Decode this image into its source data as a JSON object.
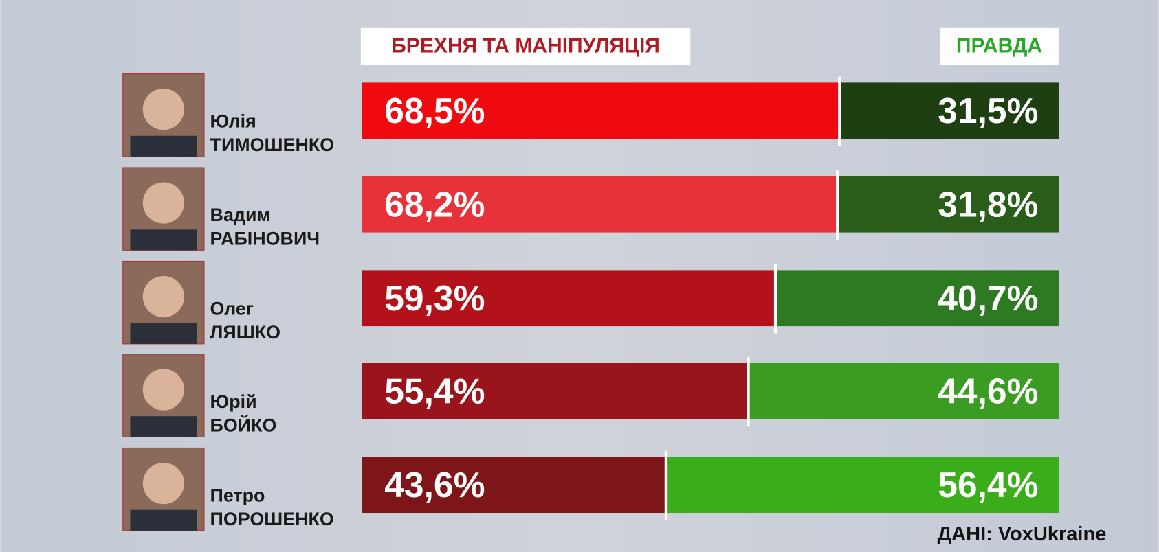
{
  "chart_data": {
    "type": "stacked_bar",
    "categories": [
      [
        "Юлія",
        "ТИМОШЕНКО"
      ],
      [
        "Вадим",
        "РАБІНОВИЧ"
      ],
      [
        "Олег",
        "ЛЯШКО"
      ],
      [
        "Юрій",
        "БОЙКО"
      ],
      [
        "Петро",
        "ПОРОШЕНКО"
      ]
    ],
    "xlim": [
      0,
      100
    ],
    "series": [
      {
        "name": "БРЕХНЯ ТА МАНІПУЛЯЦІЯ",
        "color": "#b01a22",
        "colors": [
          "#ee0a0f",
          "#e8323a",
          "#b3121a",
          "#9a141b",
          "#7d1519"
        ],
        "values": [
          68.5,
          68.2,
          59.3,
          55.4,
          43.6
        ],
        "value_labels": [
          "68,5%",
          "68,2%",
          "59,3%",
          "55,4%",
          "43,6%"
        ]
      },
      {
        "name": "ПРАВДА",
        "color": "#2aa82a",
        "colors": [
          "#1e3f12",
          "#2a5c1a",
          "#2d7a22",
          "#3b9c24",
          "#3aad1b"
        ],
        "values": [
          31.5,
          31.8,
          40.7,
          44.6,
          56.4
        ],
        "value_labels": [
          "31,5%",
          "31,8%",
          "40,7%",
          "44,6%",
          "56,4%"
        ]
      }
    ],
    "source": "ДАНІ: VoxUkraine"
  }
}
